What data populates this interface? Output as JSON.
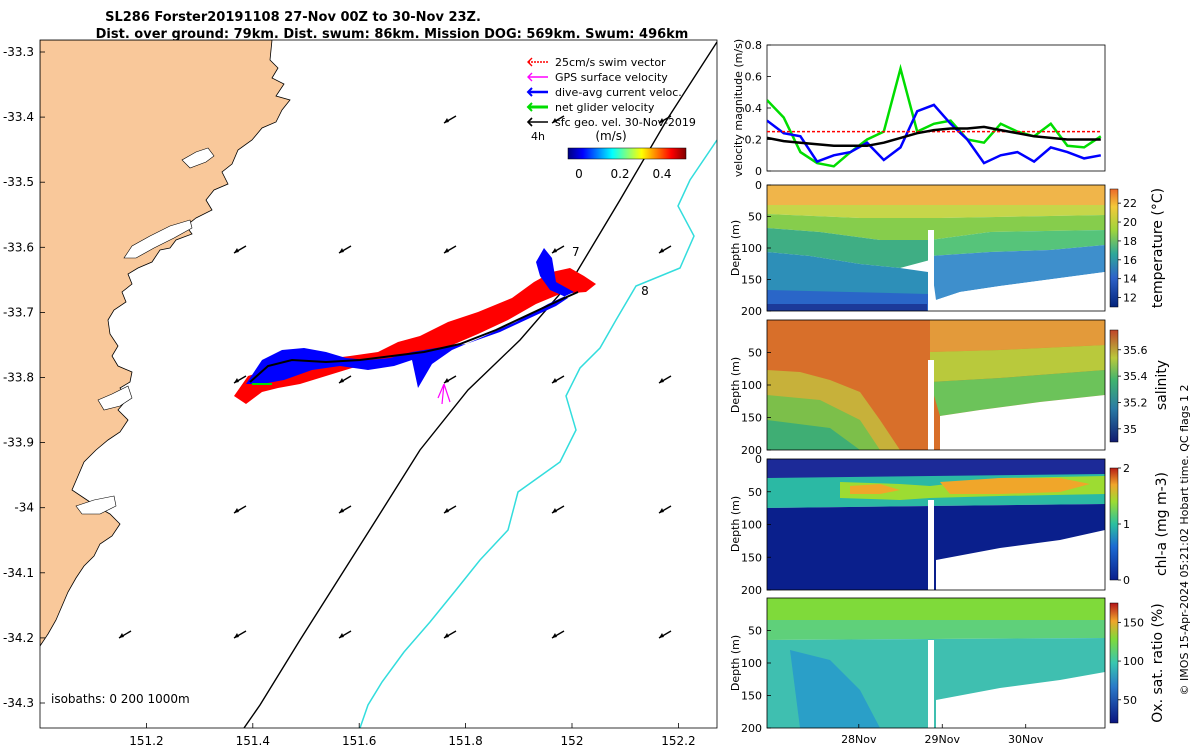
{
  "title_line1": "SL286 Forster20191108 27-Nov 00Z to 30-Nov 23Z.",
  "title_line2": "Dist. over ground: 79km. Dist. swum: 86km. Mission DOG: 569km. Swum: 496km",
  "credit": "© IMOS 15-Apr-2024 05:21:02 Hobart time. QC flags 1  2",
  "colors": {
    "land": "#f9c89a",
    "isobath_200": "#000000",
    "isobath_1000": "#33dddd",
    "swim_vector": "#ff0000",
    "gps_velocity": "#ff00ff",
    "dive_avg": "#0000ff",
    "net_glider": "#00dd00",
    "sfc_geo": "#000000"
  },
  "map": {
    "legend": [
      {
        "label": "25cm/s swim vector",
        "icon": "dotted-red-arrow-icon"
      },
      {
        "label": "GPS surface velocity",
        "icon": "magenta-arrow-icon"
      },
      {
        "label": "dive-avg current veloc.",
        "icon": "blue-arrow-icon"
      },
      {
        "label": "net glider velocity",
        "icon": "green-arrow-icon"
      },
      {
        "label": "sfc geo. vel. 30-Nov-2019",
        "icon": "black-arrow-icon"
      }
    ],
    "time_marker": "4h",
    "colorbar_unit": "(m/s)",
    "colorbar_ticks": [
      "0",
      "0.2",
      "0.4"
    ],
    "isobaths_text": "isobaths: 0   200  1000m",
    "lon_ticks": [
      "151.2",
      "151.4",
      "151.6",
      "151.8",
      "152",
      "152.2"
    ],
    "lat_ticks": [
      "-33.3",
      "-33.4",
      "-33.5",
      "-33.6",
      "-33.7",
      "-33.8",
      "-33.9",
      "-34",
      "-34.1",
      "-34.2",
      "-34.3"
    ],
    "day_labels": [
      {
        "label": "7",
        "lon": 152.0,
        "lat": -33.613
      },
      {
        "label": "8",
        "lon": 152.13,
        "lat": -33.673
      }
    ]
  },
  "chart_data": [
    {
      "type": "line",
      "name": "velocity",
      "ylabel": "velocity magnitude (m/s)",
      "ylim": [
        0,
        0.8
      ],
      "yticks": [
        "0",
        "0.2",
        "0.4",
        "0.6",
        "0.8"
      ],
      "x": [
        26.9,
        27.1,
        27.3,
        27.5,
        27.7,
        27.9,
        28.1,
        28.3,
        28.5,
        28.7,
        28.9,
        29.1,
        29.3,
        29.5,
        29.7,
        29.9,
        30.1,
        30.3,
        30.5,
        30.7,
        30.9
      ],
      "series": [
        {
          "color": "#00dd00",
          "values": [
            0.45,
            0.34,
            0.12,
            0.05,
            0.03,
            0.12,
            0.2,
            0.25,
            0.65,
            0.25,
            0.3,
            0.32,
            0.2,
            0.18,
            0.3,
            0.25,
            0.22,
            0.3,
            0.16,
            0.15,
            0.22
          ]
        },
        {
          "color": "#0000ff",
          "values": [
            0.32,
            0.24,
            0.22,
            0.06,
            0.1,
            0.12,
            0.18,
            0.07,
            0.15,
            0.38,
            0.42,
            0.3,
            0.2,
            0.05,
            0.1,
            0.12,
            0.06,
            0.15,
            0.12,
            0.08,
            0.1
          ]
        },
        {
          "color": "#ff0000",
          "values": [
            0.25,
            0.25,
            0.25,
            0.25,
            0.25,
            0.25,
            0.25,
            0.25,
            0.25,
            0.25,
            0.25,
            0.25,
            0.25,
            0.25,
            0.25,
            0.25,
            0.25,
            0.25,
            0.25,
            0.25,
            0.25
          ]
        },
        {
          "color": "#000000",
          "values": [
            0.21,
            0.19,
            0.18,
            0.17,
            0.16,
            0.16,
            0.16,
            0.18,
            0.21,
            0.24,
            0.26,
            0.27,
            0.27,
            0.28,
            0.26,
            0.24,
            0.22,
            0.21,
            0.2,
            0.2,
            0.2
          ]
        }
      ]
    },
    {
      "type": "heatmap",
      "name": "temperature",
      "ylabel": "Depth (m)",
      "yticks": [
        "0",
        "50",
        "100",
        "150",
        "200"
      ],
      "ylim": [
        0,
        200
      ],
      "cb_label": "temperature (°C)",
      "cb_ticks": [
        "22",
        "20",
        "18",
        "16",
        "14",
        "12"
      ],
      "cb_range": [
        11,
        23.5
      ]
    },
    {
      "type": "heatmap",
      "name": "salinity",
      "ylabel": "Depth (m)",
      "yticks": [
        "50",
        "100",
        "150",
        "200"
      ],
      "ylim": [
        0,
        200
      ],
      "cb_label": "salinity",
      "cb_ticks": [
        "35.6",
        "35.4",
        "35.2",
        "35"
      ],
      "cb_range": [
        34.9,
        35.75
      ]
    },
    {
      "type": "heatmap",
      "name": "chl",
      "ylabel": "Depth (m)",
      "yticks": [
        "0",
        "50",
        "100",
        "150",
        "200"
      ],
      "ylim": [
        0,
        200
      ],
      "cb_label": "chl-a (mg m-3)",
      "cb_ticks": [
        "2",
        "1",
        "0"
      ],
      "cb_range": [
        0,
        2
      ]
    },
    {
      "type": "heatmap",
      "name": "oxygen",
      "ylabel": "Depth (m)",
      "yticks": [
        "50",
        "100",
        "150",
        "200"
      ],
      "ylim": [
        0,
        200
      ],
      "cb_label": "Ox. sat. ratio (%)",
      "cb_ticks": [
        "150",
        "100",
        "50"
      ],
      "cb_range": [
        20,
        175
      ],
      "xticks": [
        "28Nov",
        "29Nov",
        "30Nov"
      ]
    }
  ]
}
